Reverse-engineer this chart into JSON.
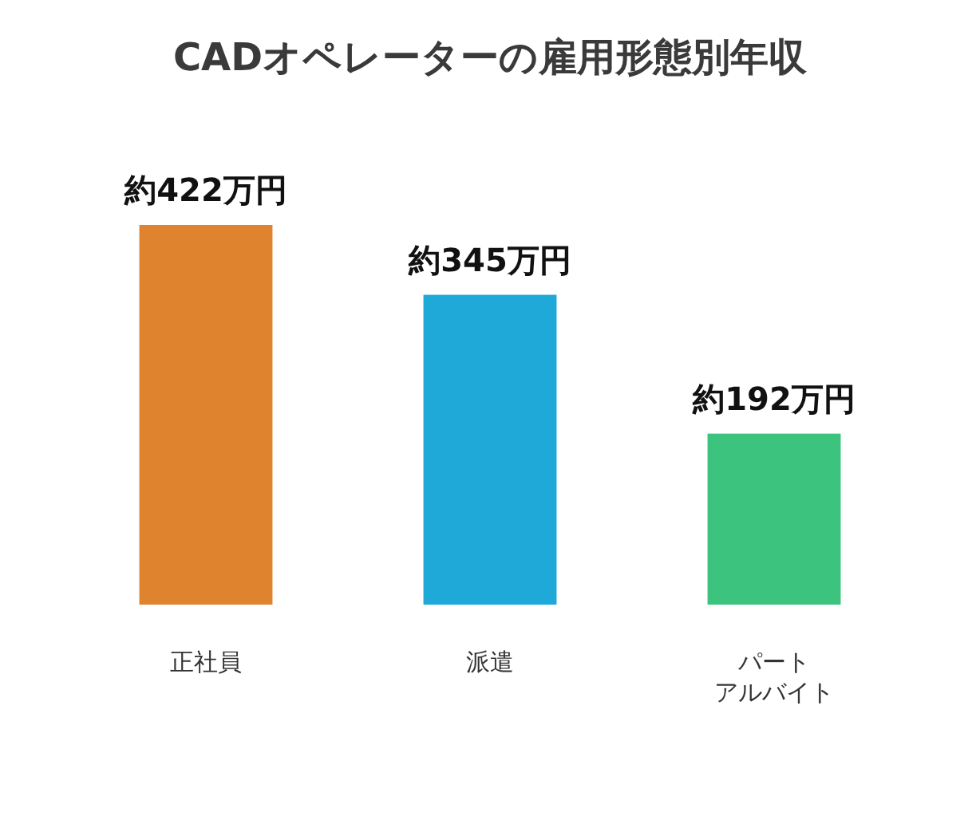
{
  "chart_data": {
    "type": "bar",
    "title": "CADオペレーターの雇用形態別年収",
    "categories": [
      "正社員",
      "派遣",
      "パートアルバイト"
    ],
    "values": [
      422,
      345,
      192
    ],
    "colors": [
      "#e0832f",
      "#1fa9d9",
      "#3cc47f"
    ],
    "value_labels": [
      "約422万円",
      "約345万円",
      "約192万円"
    ]
  }
}
